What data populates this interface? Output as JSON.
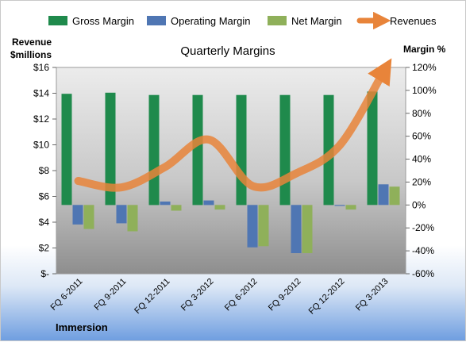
{
  "chart_data": {
    "type": "bar",
    "title": "Quarterly Margins",
    "categories": [
      "FQ 6-2011",
      "FQ 9-2011",
      "FQ 12-2011",
      "FQ 3-2012",
      "FQ 6-2012",
      "FQ 9-2012",
      "FQ 12-2012",
      "FQ 3-2013"
    ],
    "series": [
      {
        "name": "Gross Margin",
        "axis": "right",
        "color": "#1f8a4c",
        "values": [
          97,
          98,
          96,
          96,
          96,
          96,
          96,
          99
        ]
      },
      {
        "name": "Operating Margin",
        "axis": "right",
        "color": "#4f76b3",
        "values": [
          -17,
          -16,
          3,
          4,
          -37,
          -42,
          0,
          18
        ]
      },
      {
        "name": "Net Margin",
        "axis": "right",
        "color": "#8fb05a",
        "values": [
          -21,
          -23,
          -5,
          -4,
          -36,
          -42,
          -4,
          16
        ]
      },
      {
        "name": "Revenues",
        "axis": "left",
        "type": "line",
        "color": "#e8843a",
        "values": [
          7.2,
          6.7,
          8.3,
          10.4,
          6.8,
          7.8,
          10.0,
          15.7
        ]
      }
    ],
    "left_axis": {
      "label_line1": "Revenue",
      "label_line2": "$millions",
      "range": [
        0,
        16
      ],
      "ticks": [
        {
          "value": 0,
          "label": "$-"
        },
        {
          "value": 2,
          "label": "$2"
        },
        {
          "value": 4,
          "label": "$4"
        },
        {
          "value": 6,
          "label": "$6"
        },
        {
          "value": 8,
          "label": "$8"
        },
        {
          "value": 10,
          "label": "$10"
        },
        {
          "value": 12,
          "label": "$12"
        },
        {
          "value": 14,
          "label": "$14"
        },
        {
          "value": 16,
          "label": "$16"
        }
      ]
    },
    "right_axis": {
      "label": "Margin %",
      "range": [
        -60,
        120
      ],
      "ticks": [
        {
          "value": -60,
          "label": "-60%"
        },
        {
          "value": -40,
          "label": "-40%"
        },
        {
          "value": -20,
          "label": "-20%"
        },
        {
          "value": 0,
          "label": "0%"
        },
        {
          "value": 20,
          "label": "20%"
        },
        {
          "value": 40,
          "label": "40%"
        },
        {
          "value": 60,
          "label": "60%"
        },
        {
          "value": 80,
          "label": "80%"
        },
        {
          "value": 100,
          "label": "100%"
        },
        {
          "value": 120,
          "label": "120%"
        }
      ]
    },
    "legend": "top",
    "grid": false,
    "footer": "Immersion"
  }
}
